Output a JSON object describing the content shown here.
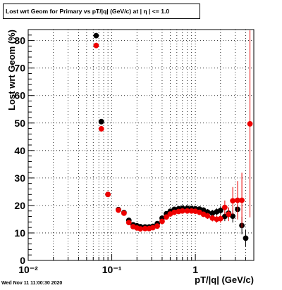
{
  "title": "Lost wrt Geom for Primary vs pT/|q| (GeV/c) at |  η | <= 1.0",
  "timestamp": "Wed Nov 11 11:00:30 2020",
  "colors": {
    "series_black": "#000000",
    "series_red": "#ee0000",
    "grid": "#000000"
  },
  "chart_data": {
    "type": "scatter",
    "title": "Lost wrt Geom for Primary vs pT/|q| (GeV/c) at |  η | <= 1.0",
    "xlabel": "pT/|q| (GeV/c)",
    "ylabel": "Lost wrt Geom (%)",
    "xscale": "log",
    "xlim": [
      0.01,
      5.0
    ],
    "ylim": [
      0,
      84
    ],
    "grid": true,
    "xticks": [
      {
        "v": 0.01,
        "label": "10⁻²"
      },
      {
        "v": 0.1,
        "label": "10⁻¹"
      },
      {
        "v": 1,
        "label": "1"
      }
    ],
    "yticks": [
      0,
      10,
      20,
      30,
      40,
      50,
      60,
      70,
      80
    ],
    "series": [
      {
        "color": "#000000",
        "points": [
          {
            "x": 0.065,
            "y": 81.8,
            "err": 1.0
          },
          {
            "x": 0.075,
            "y": 50.5,
            "err": 1.0
          },
          {
            "x": 0.09,
            "y": 24.0,
            "err": 0.8
          },
          {
            "x": 0.12,
            "y": 18.5,
            "err": 0.5
          },
          {
            "x": 0.14,
            "y": 17.4,
            "err": 0.5
          },
          {
            "x": 0.16,
            "y": 14.6,
            "err": 0.5
          },
          {
            "x": 0.18,
            "y": 13.0,
            "err": 0.5
          },
          {
            "x": 0.2,
            "y": 12.6,
            "err": 0.4
          },
          {
            "x": 0.22,
            "y": 12.3,
            "err": 0.4
          },
          {
            "x": 0.25,
            "y": 12.2,
            "err": 0.4
          },
          {
            "x": 0.28,
            "y": 12.2,
            "err": 0.4
          },
          {
            "x": 0.31,
            "y": 12.4,
            "err": 0.4
          },
          {
            "x": 0.35,
            "y": 13.4,
            "err": 0.4
          },
          {
            "x": 0.4,
            "y": 15.4,
            "err": 0.4
          },
          {
            "x": 0.45,
            "y": 17.0,
            "err": 0.5
          },
          {
            "x": 0.5,
            "y": 17.9,
            "err": 0.5
          },
          {
            "x": 0.56,
            "y": 18.6,
            "err": 0.5
          },
          {
            "x": 0.63,
            "y": 18.8,
            "err": 0.6
          },
          {
            "x": 0.7,
            "y": 19.0,
            "err": 0.6
          },
          {
            "x": 0.8,
            "y": 19.0,
            "err": 0.6
          },
          {
            "x": 0.9,
            "y": 18.9,
            "err": 0.7
          },
          {
            "x": 1.0,
            "y": 18.8,
            "err": 0.8
          },
          {
            "x": 1.12,
            "y": 18.7,
            "err": 0.9
          },
          {
            "x": 1.25,
            "y": 18.3,
            "err": 1.0
          },
          {
            "x": 1.4,
            "y": 17.6,
            "err": 1.1
          },
          {
            "x": 1.6,
            "y": 17.2,
            "err": 1.2
          },
          {
            "x": 1.8,
            "y": 17.7,
            "err": 1.3
          },
          {
            "x": 2.0,
            "y": 18.2,
            "err": 1.5
          },
          {
            "x": 2.25,
            "y": 16.0,
            "err": 1.7
          },
          {
            "x": 2.5,
            "y": 17.2,
            "err": 2.0
          },
          {
            "x": 2.8,
            "y": 16.1,
            "err": 2.3
          },
          {
            "x": 3.2,
            "y": 18.6,
            "err": 3.0
          },
          {
            "x": 3.6,
            "y": 12.7,
            "err": 3.2
          },
          {
            "x": 4.0,
            "y": 8.1,
            "err": 3.0
          }
        ]
      },
      {
        "color": "#ee0000",
        "points": [
          {
            "x": 0.065,
            "y": 78.2,
            "err": 1.0
          },
          {
            "x": 0.075,
            "y": 47.9,
            "err": 1.0
          },
          {
            "x": 0.09,
            "y": 24.0,
            "err": 0.8
          },
          {
            "x": 0.12,
            "y": 18.3,
            "err": 0.5
          },
          {
            "x": 0.14,
            "y": 17.2,
            "err": 0.5
          },
          {
            "x": 0.16,
            "y": 13.8,
            "err": 0.5
          },
          {
            "x": 0.18,
            "y": 12.3,
            "err": 0.5
          },
          {
            "x": 0.2,
            "y": 11.8,
            "err": 0.4
          },
          {
            "x": 0.22,
            "y": 11.5,
            "err": 0.4
          },
          {
            "x": 0.25,
            "y": 11.6,
            "err": 0.4
          },
          {
            "x": 0.28,
            "y": 11.6,
            "err": 0.4
          },
          {
            "x": 0.31,
            "y": 11.9,
            "err": 0.4
          },
          {
            "x": 0.35,
            "y": 12.5,
            "err": 0.4
          },
          {
            "x": 0.4,
            "y": 14.2,
            "err": 0.4
          },
          {
            "x": 0.45,
            "y": 15.8,
            "err": 0.5
          },
          {
            "x": 0.5,
            "y": 16.9,
            "err": 0.5
          },
          {
            "x": 0.56,
            "y": 17.5,
            "err": 0.5
          },
          {
            "x": 0.63,
            "y": 17.8,
            "err": 0.6
          },
          {
            "x": 0.7,
            "y": 18.0,
            "err": 0.6
          },
          {
            "x": 0.8,
            "y": 18.0,
            "err": 0.6
          },
          {
            "x": 0.9,
            "y": 18.0,
            "err": 0.7
          },
          {
            "x": 1.0,
            "y": 17.9,
            "err": 0.8
          },
          {
            "x": 1.12,
            "y": 17.5,
            "err": 0.9
          },
          {
            "x": 1.25,
            "y": 16.8,
            "err": 1.0
          },
          {
            "x": 1.4,
            "y": 16.2,
            "err": 1.1
          },
          {
            "x": 1.6,
            "y": 15.4,
            "err": 1.2
          },
          {
            "x": 1.8,
            "y": 15.0,
            "err": 1.3
          },
          {
            "x": 2.0,
            "y": 15.2,
            "err": 1.5
          },
          {
            "x": 2.25,
            "y": 19.3,
            "err": 2.5
          },
          {
            "x": 2.5,
            "y": 16.8,
            "err": 2.5
          },
          {
            "x": 2.8,
            "y": 21.7,
            "err": 5.0
          },
          {
            "x": 3.2,
            "y": 21.9,
            "err": 7.0
          },
          {
            "x": 3.6,
            "y": 21.9,
            "err": 10.0
          },
          {
            "x": 4.5,
            "y": 49.7,
            "err": 34.0
          }
        ]
      }
    ]
  }
}
